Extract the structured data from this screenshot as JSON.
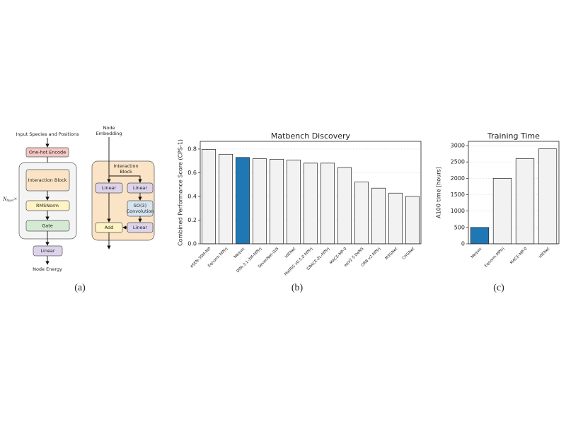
{
  "diagram": {
    "input": "Input Species and Positions",
    "encode": "One-hot Encode",
    "interaction": "Interaction Block",
    "norm": "RMSNorm",
    "gate": "Gate",
    "repeat_symbol": "N",
    "repeat_subscript": "layer",
    "repeat_times": "×",
    "linear": "Linear",
    "output": "Node Energy",
    "detail": {
      "input": [
        "Node",
        "Embedding"
      ],
      "block": [
        "Interaction",
        "Block"
      ],
      "linear_a": "Linear",
      "linear_b": "Linear",
      "conv": [
        "SO(3)",
        "Convolution"
      ],
      "linear_c": "Linear",
      "add": "Add"
    }
  },
  "captions": [
    "(a)",
    "(b)",
    "(c)"
  ],
  "chart_data": [
    {
      "type": "bar",
      "title": "Matbench Discovery",
      "y_label": "Combined Performance Score (CPS-1)",
      "categories": [
        "eSEN-30M-MP",
        "Eqnorm MPtrj",
        "Nequix",
        "DPA-3.1-3M-MPtrj",
        "SevenNet-l3i5",
        "HIENet",
        "MatRIS v0.5.0 MPtrj",
        "GRACE-2L-MPtrj",
        "MACE-MP-0",
        "eqV2 S DeNS",
        "ORB v2 MPtrj",
        "M3GNet",
        "CHGNet"
      ],
      "values": [
        0.797,
        0.756,
        0.729,
        0.718,
        0.714,
        0.708,
        0.681,
        0.681,
        0.644,
        0.522,
        0.47,
        0.428,
        0.4
      ],
      "colors": [
        "#f2f2f2",
        "#f2f2f2",
        "#1f77b4",
        "#f2f2f2",
        "#f2f2f2",
        "#f2f2f2",
        "#f2f2f2",
        "#f2f2f2",
        "#f2f2f2",
        "#f2f2f2",
        "#f2f2f2",
        "#f2f2f2",
        "#f2f2f2"
      ],
      "ylim": [
        0,
        0.865
      ],
      "yticks": [
        {
          "value": 0,
          "label": "0.0"
        },
        0.2,
        0.4,
        0.6,
        0.8
      ],
      "grid": true
    },
    {
      "type": "bar",
      "title": "Training Time",
      "y_label": "A100 time [hours]",
      "categories": [
        "Nequix",
        "Eqnorm MPtrj",
        "MACE-MP-0",
        "HIENet"
      ],
      "values": [
        500,
        2000,
        2600,
        2900
      ],
      "colors": [
        "#1f77b4",
        "#f2f2f2",
        "#f2f2f2",
        "#f2f2f2"
      ],
      "ylim": [
        0,
        3130
      ],
      "yticks": [
        0,
        500,
        1000,
        1500,
        2000,
        2500,
        3000
      ],
      "grid": true
    }
  ]
}
